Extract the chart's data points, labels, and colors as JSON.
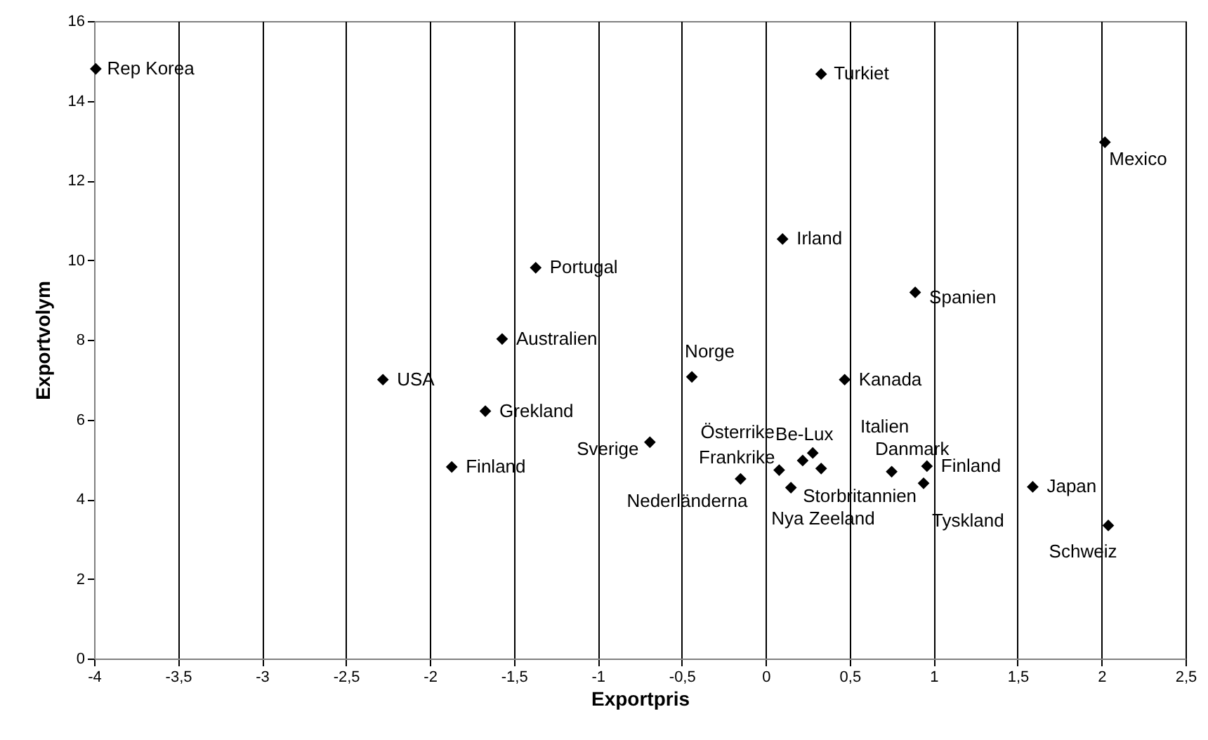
{
  "chart_data": {
    "type": "scatter",
    "xlabel": "Exportpris",
    "ylabel": "Exportvolym",
    "series": [
      {
        "color": "#000000",
        "x": [
          -3.99,
          0.33,
          2.02,
          -1.37,
          0.1,
          0.89,
          -1.57,
          -0.44,
          -2.28,
          0.47,
          -1.67,
          -1.87,
          -0.69,
          -0.15,
          0.08,
          0.15,
          0.22,
          0.28,
          0.33,
          0.75,
          0.95,
          0.96,
          0.94,
          1.59,
          2.04
        ],
        "values": [
          14.8,
          14.67,
          12.96,
          9.81,
          10.53,
          9.19,
          8.02,
          7.07,
          7.0,
          7.0,
          6.21,
          4.81,
          5.43,
          4.51,
          4.73,
          4.29,
          4.97,
          5.16,
          4.77,
          4.69,
          null,
          4.83,
          4.4,
          4.31,
          3.34
        ]
      }
    ],
    "annotations": [
      {
        "text": "Rep Korea",
        "x": -3.99,
        "y": 14.8
      },
      {
        "text": "Turkiet",
        "x": 0.33,
        "y": 14.67
      },
      {
        "text": "Mexico",
        "x": 2.02,
        "y": 12.96
      },
      {
        "text": "Portugal",
        "x": -1.37,
        "y": 9.81
      },
      {
        "text": "Irland",
        "x": 0.1,
        "y": 10.53
      },
      {
        "text": "Spanien",
        "x": 0.89,
        "y": 9.19
      },
      {
        "text": "Australien",
        "x": -1.57,
        "y": 8.02
      },
      {
        "text": "Norge",
        "x": -0.44,
        "y": 7.07
      },
      {
        "text": "USA",
        "x": -2.28,
        "y": 7.0
      },
      {
        "text": "Kanada",
        "x": 0.47,
        "y": 7.0
      },
      {
        "text": "Grekland",
        "x": -1.67,
        "y": 6.21
      },
      {
        "text": "Finland",
        "x": -1.87,
        "y": 4.81
      },
      {
        "text": "Sverige",
        "x": -0.69,
        "y": 5.43
      },
      {
        "text": "Nederländerna",
        "x": -0.15,
        "y": 4.51
      },
      {
        "text": "Frankrike",
        "x": 0.08,
        "y": 4.73
      },
      {
        "text": "Nya Zeeland",
        "x": 0.15,
        "y": 4.29
      },
      {
        "text": "Österrike",
        "x": 0.22,
        "y": 4.97
      },
      {
        "text": "Be-Lux",
        "x": 0.28,
        "y": 5.16
      },
      {
        "text": "Storbritannien",
        "x": 0.33,
        "y": 4.77
      },
      {
        "text": "Italien",
        "x": 0.75,
        "y": 4.69
      },
      {
        "text": "Danmark",
        "x": 0.95,
        "y": 4.83
      },
      {
        "text": "Finland",
        "x": 0.96,
        "y": 4.83
      },
      {
        "text": "Tyskland",
        "x": 0.94,
        "y": 4.4
      },
      {
        "text": "Japan",
        "x": 1.59,
        "y": 4.31
      },
      {
        "text": "Schweiz",
        "x": 2.04,
        "y": 3.34
      }
    ],
    "xlim": [
      -4,
      2.5
    ],
    "xticks": [
      -4,
      {
        "value": -3.5,
        "label": "-3,5"
      },
      -3,
      {
        "value": -2.5,
        "label": "-2,5"
      },
      -2,
      {
        "value": -1.5,
        "label": "-1,5"
      },
      -1,
      {
        "value": -0.5,
        "label": "-0,5"
      },
      0,
      {
        "value": 0.5,
        "label": "0,5"
      },
      1,
      {
        "value": 1.5,
        "label": "1,5"
      },
      2,
      {
        "value": 2.5,
        "label": "2,5"
      }
    ],
    "ylim": [
      0,
      16
    ],
    "yticks": [
      0,
      2,
      4,
      6,
      8,
      10,
      12,
      14,
      16
    ],
    "grid": "x",
    "marker": "diamond"
  }
}
